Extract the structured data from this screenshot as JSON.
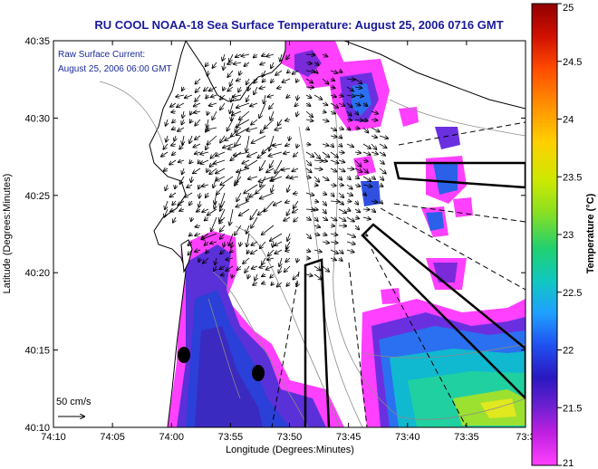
{
  "title": "RU COOL  NOAA-18  Sea Surface Temperature:  August 25, 2006 0716 GMT",
  "annotation": {
    "line1": "Raw Surface Current:",
    "line2": "August 25, 2006 06:00 GMT"
  },
  "scale_label": "50 cm/s",
  "x_axis": {
    "label": "Longitude (Degrees:Minutes)",
    "ticks": [
      "74:10",
      "74:05",
      "74:00",
      "73:55",
      "73:50",
      "73:45",
      "73:40",
      "73:35",
      "73:3"
    ]
  },
  "y_axis": {
    "label": "Latitude (Degrees:Minutes)",
    "ticks": [
      "40:35",
      "40:30",
      "40:25",
      "40:20",
      "40:15",
      "40:10"
    ]
  },
  "colorbar": {
    "label": "Temperature (°C)",
    "ticks": [
      "25",
      "24.5",
      "24",
      "23.5",
      "23",
      "22.5",
      "22",
      "21.5",
      "21"
    ],
    "colors": [
      "#b00000",
      "#e02000",
      "#ff6a00",
      "#ffb000",
      "#e8e800",
      "#8ce020",
      "#20d070",
      "#10c8c0",
      "#20a0ff",
      "#2050f0",
      "#2a18c0",
      "#8a20d0",
      "#e020e0",
      "#ff40ff"
    ]
  },
  "colors": {
    "title": "#1a1a9a",
    "land": "#ffffff",
    "water_background": "#ffffff",
    "coast": "#000000",
    "bathymetry": "#8a8a8a"
  }
}
